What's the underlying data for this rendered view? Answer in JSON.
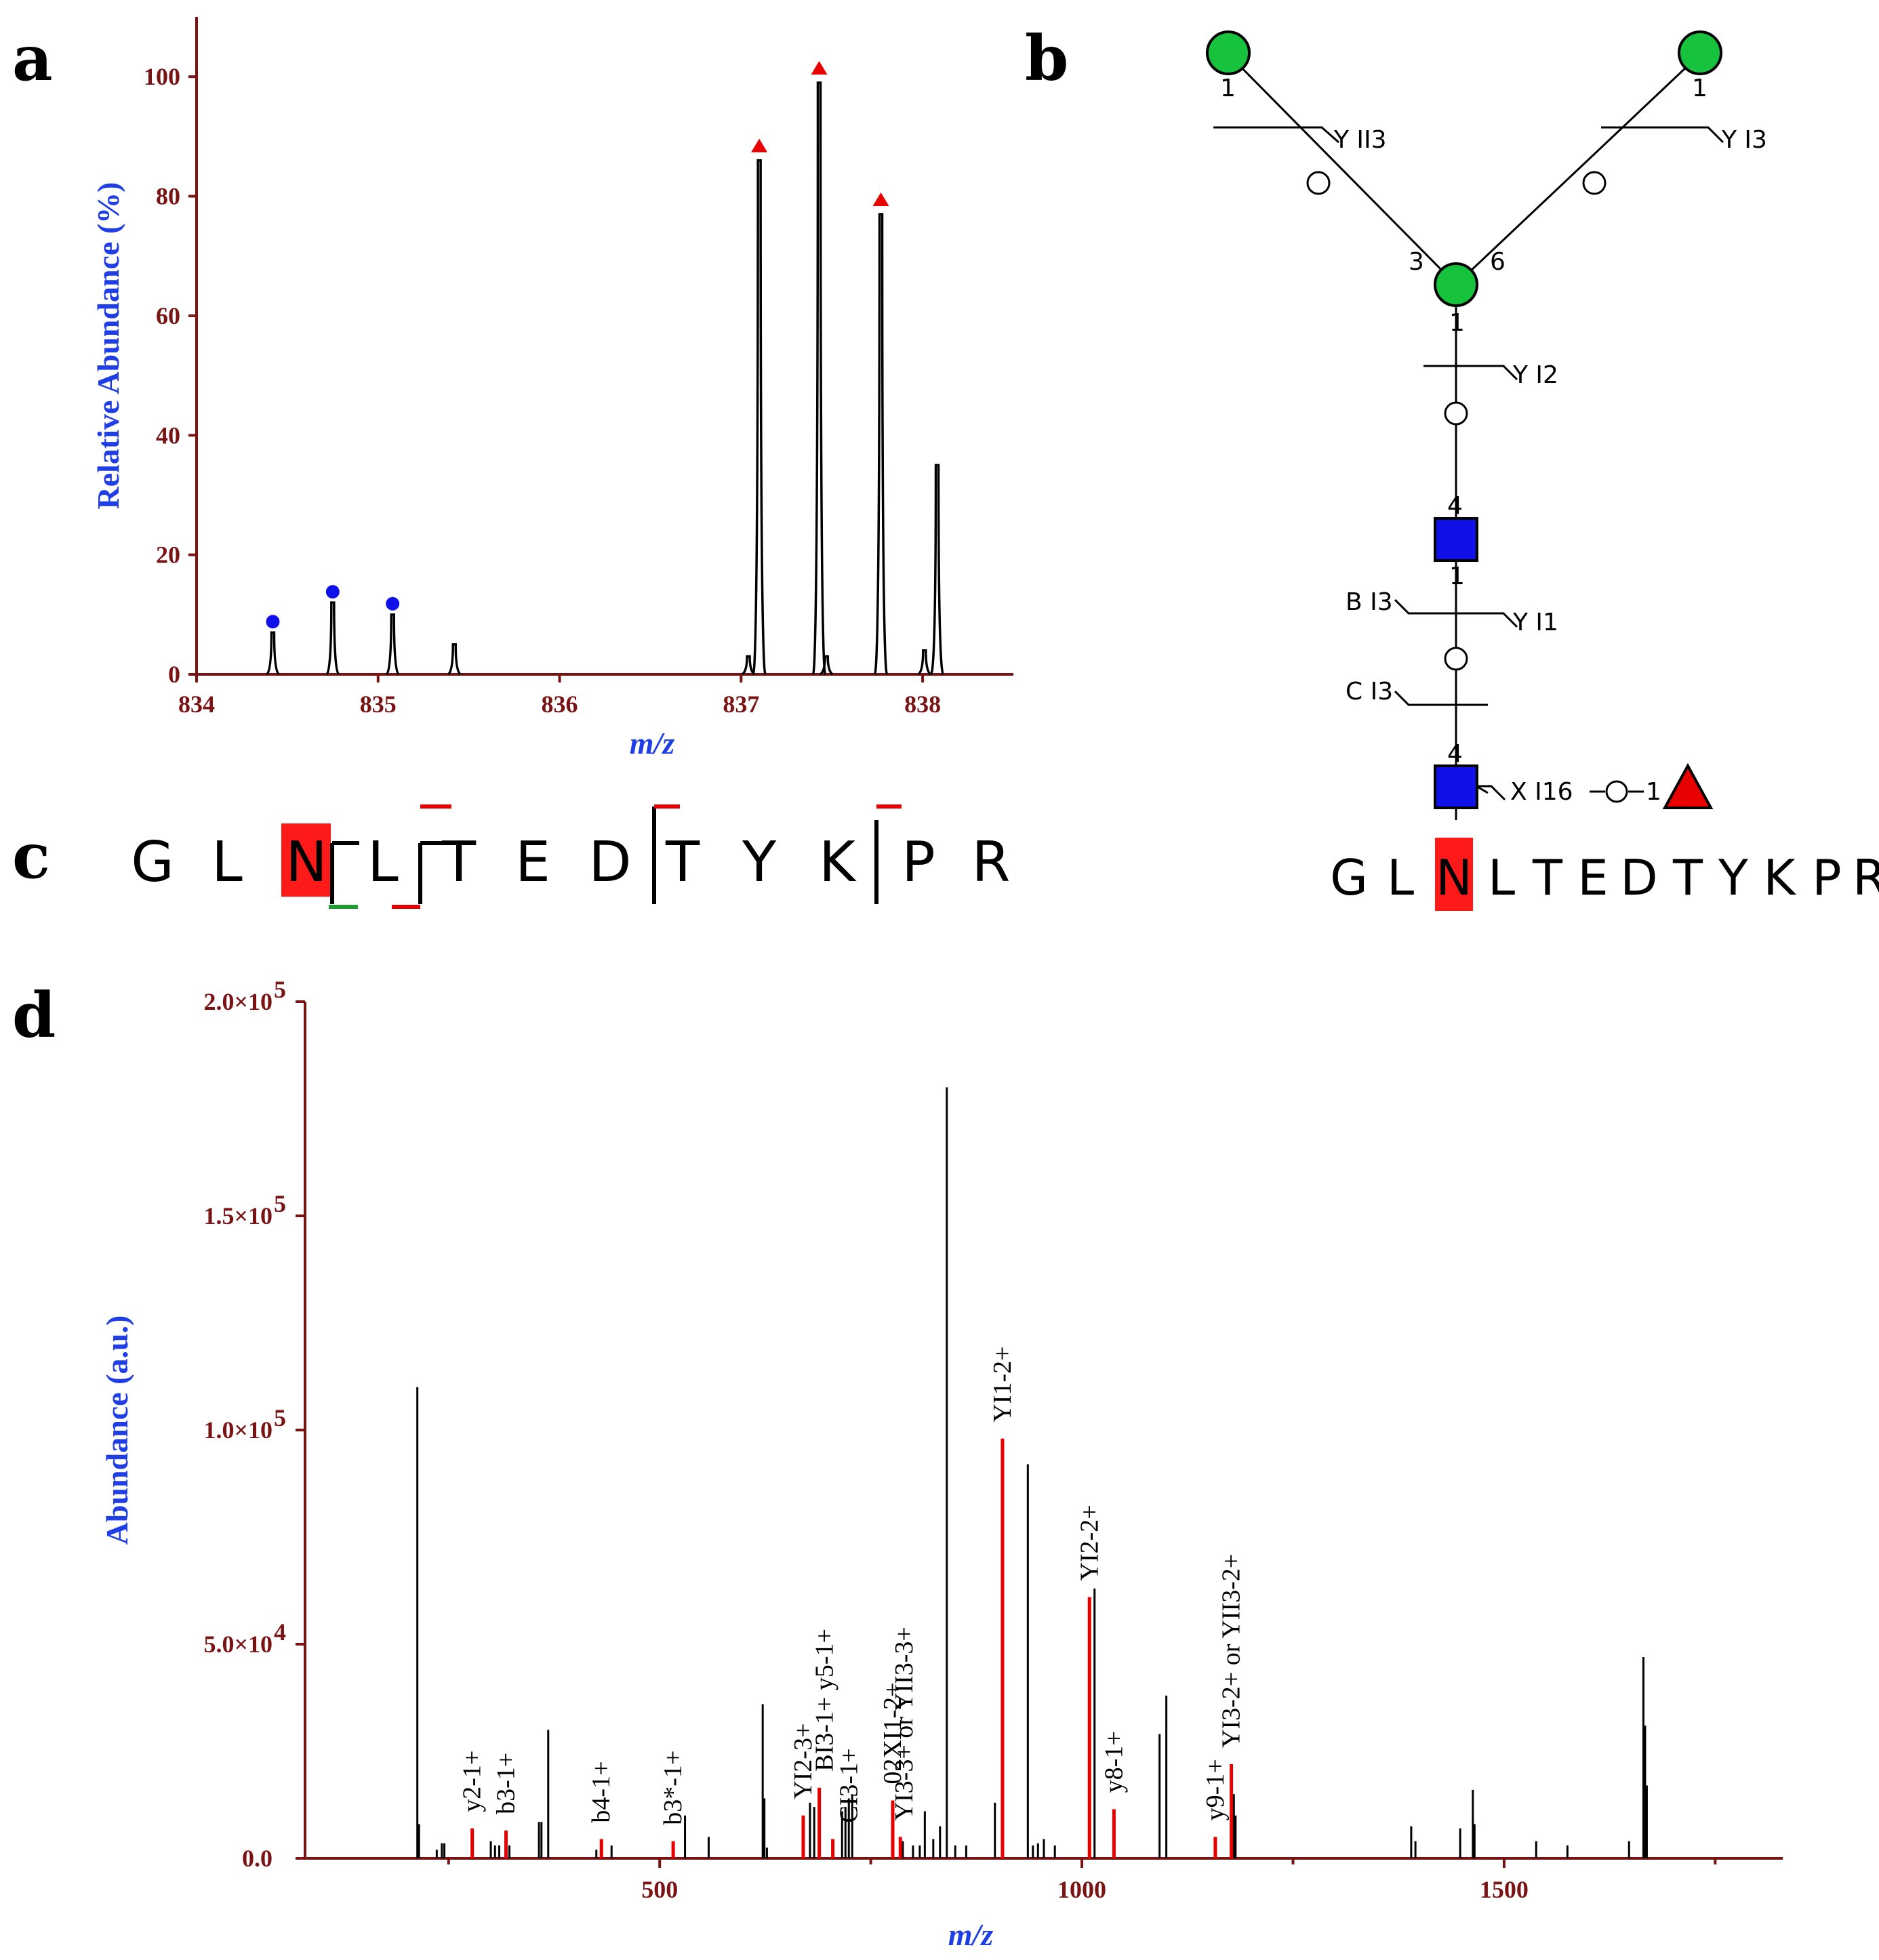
{
  "panels": {
    "a": "a",
    "b": "b",
    "c": "c",
    "d": "d"
  },
  "chart_data": [
    {
      "id": "a",
      "type": "line",
      "title": "",
      "xlabel": "m/z",
      "ylabel": "Relative Abundance (%)",
      "xlim": [
        834,
        838.5
      ],
      "ylim": [
        0,
        110
      ],
      "xticks": [
        834,
        835,
        836,
        837,
        838
      ],
      "yticks": [
        0,
        20,
        40,
        60,
        80,
        100
      ],
      "peaks": [
        {
          "x": 834.42,
          "y": 7,
          "marker": "circle"
        },
        {
          "x": 834.75,
          "y": 12,
          "marker": "circle"
        },
        {
          "x": 835.08,
          "y": 10,
          "marker": "circle"
        },
        {
          "x": 835.42,
          "y": 5,
          "marker": "none"
        },
        {
          "x": 837.04,
          "y": 3,
          "marker": "none"
        },
        {
          "x": 837.1,
          "y": 86,
          "marker": "triangle"
        },
        {
          "x": 837.43,
          "y": 99,
          "marker": "triangle"
        },
        {
          "x": 837.47,
          "y": 3,
          "marker": "none"
        },
        {
          "x": 837.77,
          "y": 77,
          "marker": "triangle"
        },
        {
          "x": 838.01,
          "y": 4,
          "marker": "none"
        },
        {
          "x": 838.08,
          "y": 35,
          "marker": "none"
        }
      ],
      "marker_colors": {
        "circle": "#1010e8",
        "triangle": "#e80000"
      }
    },
    {
      "id": "d",
      "type": "bar",
      "title": "",
      "xlabel": "m/z",
      "ylabel": "Abundance (a.u.)",
      "xlim": [
        80,
        1830
      ],
      "ylim": [
        0,
        200000
      ],
      "xticks": [
        500,
        1000,
        1500
      ],
      "xminor": [
        250,
        750,
        1250,
        1750
      ],
      "yticks": [
        0,
        50000,
        100000,
        150000,
        200000
      ],
      "ytick_labels": {
        "0": {
          "base": "0.0",
          "exp": ""
        },
        "50000": {
          "base": "5.0×10",
          "exp": "4"
        },
        "100000": {
          "base": "1.0×10",
          "exp": "5"
        },
        "150000": {
          "base": "1.5×10",
          "exp": "5"
        },
        "200000": {
          "base": "2.0×10",
          "exp": "5"
        }
      },
      "colors": {
        "matched": "#e80000",
        "unmatched": "#000000"
      },
      "peaks_unmatched": [
        {
          "x": 213,
          "y": 110000
        },
        {
          "x": 215,
          "y": 8000
        },
        {
          "x": 236,
          "y": 2000
        },
        {
          "x": 242,
          "y": 3500
        },
        {
          "x": 245,
          "y": 3500
        },
        {
          "x": 300,
          "y": 4000
        },
        {
          "x": 305,
          "y": 3000
        },
        {
          "x": 310,
          "y": 3000
        },
        {
          "x": 322,
          "y": 3000
        },
        {
          "x": 357,
          "y": 8500
        },
        {
          "x": 360,
          "y": 8500
        },
        {
          "x": 368,
          "y": 30000
        },
        {
          "x": 425,
          "y": 2000
        },
        {
          "x": 443,
          "y": 3000
        },
        {
          "x": 530,
          "y": 10000
        },
        {
          "x": 558,
          "y": 5000
        },
        {
          "x": 622,
          "y": 36000
        },
        {
          "x": 624,
          "y": 14000
        },
        {
          "x": 627,
          "y": 2500
        },
        {
          "x": 678,
          "y": 13000
        },
        {
          "x": 683,
          "y": 12000
        },
        {
          "x": 716,
          "y": 11000
        },
        {
          "x": 720,
          "y": 12000
        },
        {
          "x": 724,
          "y": 14000
        },
        {
          "x": 728,
          "y": 15000
        },
        {
          "x": 788,
          "y": 4000
        },
        {
          "x": 800,
          "y": 3000
        },
        {
          "x": 808,
          "y": 3000
        },
        {
          "x": 814,
          "y": 11000
        },
        {
          "x": 824,
          "y": 4500
        },
        {
          "x": 832,
          "y": 7500
        },
        {
          "x": 840,
          "y": 180000
        },
        {
          "x": 850,
          "y": 3000
        },
        {
          "x": 863,
          "y": 3000
        },
        {
          "x": 897,
          "y": 13000
        },
        {
          "x": 936,
          "y": 92000
        },
        {
          "x": 942,
          "y": 3000
        },
        {
          "x": 948,
          "y": 3500
        },
        {
          "x": 955,
          "y": 4500
        },
        {
          "x": 968,
          "y": 3000
        },
        {
          "x": 1015,
          "y": 63000
        },
        {
          "x": 1092,
          "y": 29000
        },
        {
          "x": 1100,
          "y": 38000
        },
        {
          "x": 1180,
          "y": 15000
        },
        {
          "x": 1182,
          "y": 10000
        },
        {
          "x": 1390,
          "y": 7500
        },
        {
          "x": 1395,
          "y": 4000
        },
        {
          "x": 1448,
          "y": 7000
        },
        {
          "x": 1463,
          "y": 16000
        },
        {
          "x": 1465,
          "y": 8000
        },
        {
          "x": 1538,
          "y": 4000
        },
        {
          "x": 1575,
          "y": 3000
        },
        {
          "x": 1648,
          "y": 4000
        },
        {
          "x": 1665,
          "y": 47000
        },
        {
          "x": 1667,
          "y": 31000
        },
        {
          "x": 1669,
          "y": 17000
        }
      ],
      "peaks_matched": [
        {
          "x": 278,
          "y": 7000,
          "label": "y2-1+"
        },
        {
          "x": 318,
          "y": 6500,
          "label": "b3-1+"
        },
        {
          "x": 431,
          "y": 4500,
          "label": "b4-1+"
        },
        {
          "x": 516,
          "y": 4000,
          "label": "b3*-1+"
        },
        {
          "x": 670,
          "y": 10000,
          "label": "YI2-3+"
        },
        {
          "x": 689,
          "y": 16500,
          "label": "BI3-1+  y5-1+"
        },
        {
          "x": 705,
          "y": 4500,
          "label": "CI3-1+"
        },
        {
          "x": 776,
          "y": 13500,
          "label": "02XI1-2+"
        },
        {
          "x": 785,
          "y": 5000,
          "label": "YI3-3+ or YII3-3+"
        },
        {
          "x": 906,
          "y": 98000,
          "label": "YI1-2+"
        },
        {
          "x": 1009,
          "y": 61000,
          "label": "YI2-2+"
        },
        {
          "x": 1038,
          "y": 11500,
          "label": "y8-1+"
        },
        {
          "x": 1158,
          "y": 5000,
          "label": "y9-1+"
        },
        {
          "x": 1177,
          "y": 22000,
          "label": "YI3-2+ or YII3-2+"
        }
      ]
    }
  ],
  "glycan": {
    "peptide_letters": [
      "G",
      "L",
      "N",
      "L",
      "T",
      "E",
      "D",
      "T",
      "Y",
      "K",
      "P",
      "R"
    ],
    "site_index": 2,
    "site_color": "#ff1a1a",
    "colors": {
      "mannose": "#17c23d",
      "glcnac": "#1010e8",
      "fucose": "#e80000"
    },
    "linkages": {
      "top_left": "1",
      "top_right": "1",
      "branch_left": "3",
      "branch_right": "6",
      "core_man": "1",
      "upper_glcnac_top": "4",
      "upper_glcnac_bottom": "1",
      "lower_glcnac_top": "4"
    },
    "cleavages": {
      "y_ii3": "Y II3",
      "y_i3": "Y I3",
      "y_i2": "Y I2",
      "b_i3": "B I3",
      "y_i1": "Y I1",
      "c_i3": "C I3",
      "x_i16": "X I16",
      "fuc_link": "1"
    }
  },
  "sequence_c": {
    "letters": [
      "G",
      "L",
      "N",
      "L",
      "T",
      "E",
      "D",
      "T",
      "Y",
      "K",
      "P",
      "R"
    ],
    "site_index": 2,
    "site_color": "#ff1a1a",
    "colors": {
      "cleavage": "#000000",
      "flag": "#e80000",
      "green": "#1a9e2e"
    }
  }
}
